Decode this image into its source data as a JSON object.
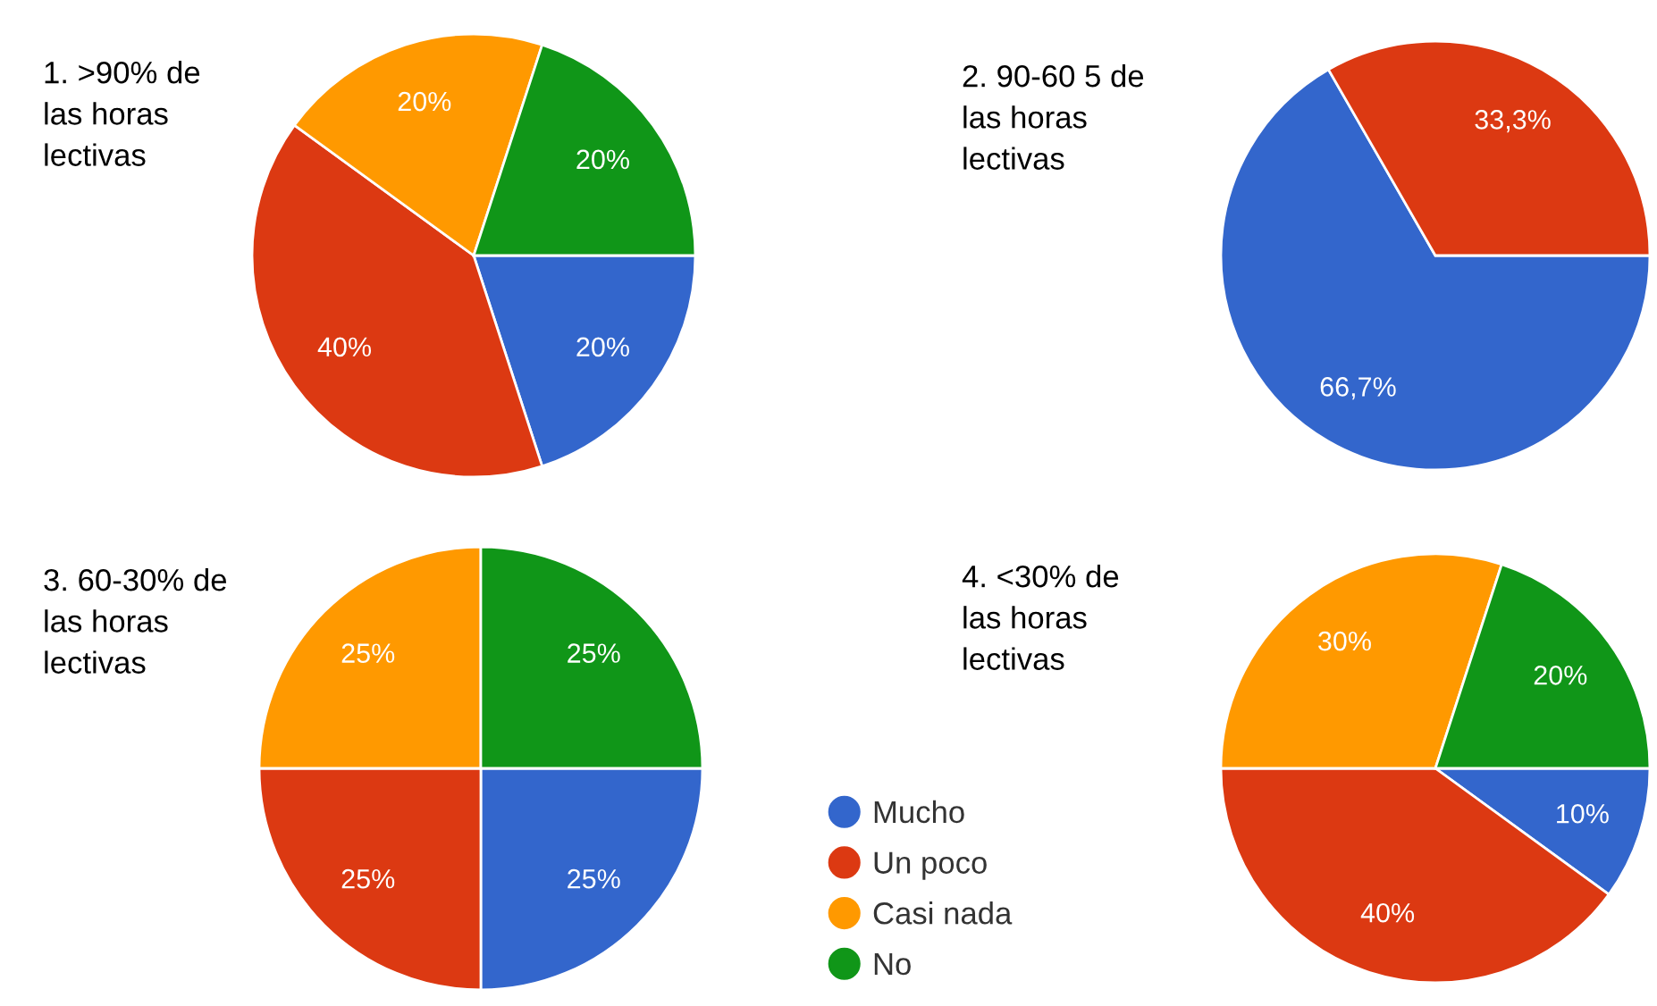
{
  "chart_data": [
    {
      "type": "pie",
      "title": "1. >90% de\nlas horas\nlectivas",
      "categories": [
        null,
        null,
        null,
        null
      ],
      "values": [
        20,
        40,
        20,
        20
      ],
      "colors": [
        "#3366cc",
        "#dc3912",
        "#ff9900",
        "#109618"
      ],
      "value_labels": [
        "20%",
        "40%",
        "20%",
        "20%"
      ]
    },
    {
      "type": "pie",
      "title": "2. 90-60 5 de\nlas horas\nlectivas",
      "categories": [
        null,
        null
      ],
      "values": [
        66.7,
        33.3
      ],
      "colors": [
        "#3366cc",
        "#dc3912"
      ],
      "value_labels": [
        "66,7%",
        "33,3%"
      ]
    },
    {
      "type": "pie",
      "title": "3. 60-30% de\nlas horas\nlectivas",
      "categories": [
        "Mucho",
        "Un poco",
        "Casi nada",
        "No"
      ],
      "values": [
        25,
        25,
        25,
        25
      ],
      "colors": [
        "#3366cc",
        "#dc3912",
        "#ff9900",
        "#109618"
      ],
      "value_labels": [
        "25%",
        "25%",
        "25%",
        "25%"
      ],
      "legend": "right"
    },
    {
      "type": "pie",
      "title": "4. <30% de\nlas horas\nlectivas",
      "categories": [
        null,
        null,
        null,
        null
      ],
      "values": [
        10,
        40,
        30,
        20
      ],
      "colors": [
        "#3366cc",
        "#dc3912",
        "#ff9900",
        "#109618"
      ],
      "value_labels": [
        "10%",
        "40%",
        "30%",
        "20%"
      ]
    }
  ]
}
